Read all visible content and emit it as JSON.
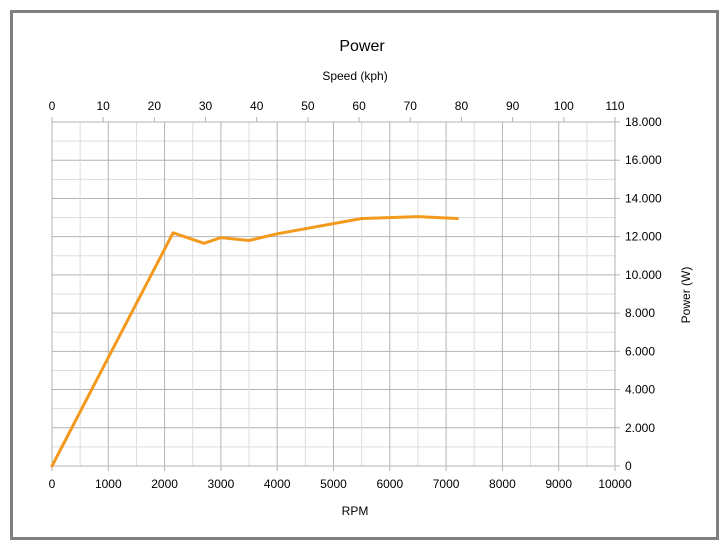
{
  "chart_data": {
    "type": "line",
    "title": "Power",
    "xlabel": "RPM",
    "x2label": "Speed (kph)",
    "ylabel": "Power (W)",
    "xlim": [
      0,
      10000
    ],
    "x2lim": [
      0,
      110
    ],
    "ylim": [
      0,
      18000
    ],
    "x_ticks": [
      "0",
      "1000",
      "2000",
      "3000",
      "4000",
      "5000",
      "6000",
      "7000",
      "8000",
      "9000",
      "10000"
    ],
    "x2_ticks": [
      "0",
      "10",
      "20",
      "30",
      "40",
      "50",
      "60",
      "70",
      "80",
      "90",
      "100",
      "110"
    ],
    "y_ticks": [
      "0",
      "2.000",
      "4.000",
      "6.000",
      "8.000",
      "10.000",
      "12.000",
      "14.000",
      "16.000",
      "18.000"
    ],
    "grid": true,
    "line_color": "#f39a1e",
    "series": [
      {
        "x": [
          0,
          2150,
          2700,
          3000,
          3500,
          4000,
          5500,
          6500,
          7200
        ],
        "values": [
          0,
          12200,
          11650,
          11950,
          11800,
          12150,
          12950,
          13050,
          12950
        ]
      }
    ]
  }
}
